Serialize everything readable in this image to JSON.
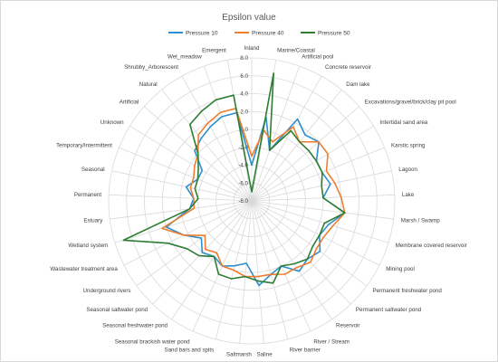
{
  "chart_data": {
    "type": "radar",
    "title": "Epsilon value",
    "categories": [
      "Inland",
      "Marine/Coastal",
      "Artificial pool",
      "Concrete reservoir",
      "Dam lake",
      "Excavations/gravel/brick/clay pit pool",
      "Intertidal sand area",
      "Karstic spring",
      "Lagoon",
      "Lake",
      "Marsh / Swamp",
      "Membrane covered reservoir",
      "Mining pool",
      "Permanent freshwater pond",
      "Permanent saltwater pond",
      "Reservoir",
      "River / Stream",
      "River barrier",
      "Saline",
      "Saltmarsh",
      "Sand bars and spits",
      "Seasonal brackish water pond",
      "Seasonal freshwater pond",
      "Seasonal saltwater pond",
      "Underground rivers",
      "Wastewater treatment area",
      "Wetland system",
      "Estuary",
      "Permanent",
      "Seasonal",
      "Temporary/Intermittent",
      "Unknown",
      "Artificial",
      "Natural",
      "Shrubby_Arborescent",
      "Wet_meadow",
      "Emergent"
    ],
    "r_ticks": [
      -8.0,
      -6.0,
      -4.0,
      -2.0,
      0.0,
      2.0,
      4.0,
      6.0,
      8.0
    ],
    "r_tick_labels": [
      "-8.0",
      "-6.0",
      "-4.0",
      "-2.0",
      "0.0",
      "2.0",
      "4.0",
      "6.0",
      "8.0"
    ],
    "rlim": [
      -8,
      8
    ],
    "legend_position": "top",
    "series": [
      {
        "name": "Pressure 10",
        "color": "#2e8fce",
        "values": [
          -4.0,
          1.5,
          -2.0,
          2.5,
          1.5,
          2.0,
          0.5,
          0.5,
          1.0,
          0.0,
          2.5,
          1.0,
          0.5,
          1.5,
          1.0,
          1.5,
          0.0,
          0.5,
          1.5,
          -1.0,
          -0.5,
          0.0,
          -0.5,
          0.0,
          -1.0,
          0.5,
          2.0,
          -1.0,
          -1.5,
          -0.5,
          -1.5,
          -1.5,
          0.5,
          1.0,
          1.5,
          2.0,
          2.0
        ]
      },
      {
        "name": "Pressure 40",
        "color": "#ed7d31",
        "values": [
          -3.0,
          0.0,
          -1.0,
          1.5,
          0.5,
          2.0,
          2.0,
          1.0,
          1.5,
          2.0,
          2.5,
          1.5,
          1.0,
          1.0,
          1.5,
          1.0,
          1.0,
          0.5,
          0.5,
          0.5,
          0.0,
          0.0,
          -1.0,
          -0.5,
          -1.5,
          0.5,
          2.5,
          -1.5,
          -1.5,
          -1.0,
          -1.0,
          -0.5,
          0.0,
          1.5,
          2.0,
          2.5,
          2.5
        ]
      },
      {
        "name": "Pressure 50",
        "color": "#2e7d32",
        "values": [
          -7.0,
          6.5,
          -2.0,
          1.0,
          0.5,
          0.5,
          0.5,
          0.5,
          0.0,
          0.0,
          2.5,
          0.5,
          0.5,
          0.5,
          1.0,
          0.5,
          0.0,
          1.5,
          1.0,
          0.5,
          1.0,
          1.0,
          -0.5,
          0.5,
          1.0,
          2.5,
          7.0,
          -1.0,
          -2.0,
          -1.5,
          -1.5,
          -1.0,
          0.0,
          3.0,
          3.5,
          4.0,
          4.0
        ]
      }
    ]
  }
}
